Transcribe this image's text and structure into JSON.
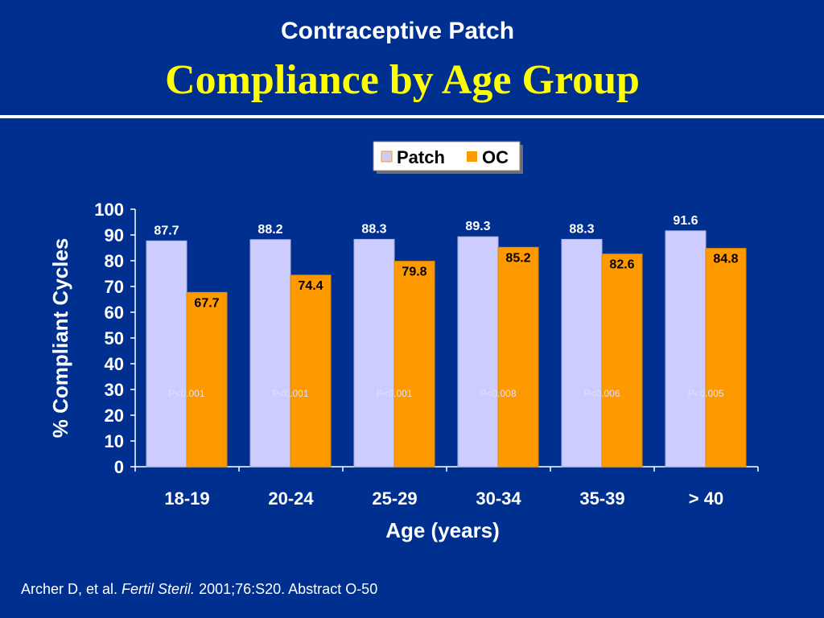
{
  "header": {
    "subtitle": "Contraceptive Patch",
    "title": "Compliance by Age Group"
  },
  "chart_data": {
    "type": "bar",
    "categories": [
      "18-19",
      "20-24",
      "25-29",
      "30-34",
      "35-39",
      "> 40"
    ],
    "series": [
      {
        "name": "Patch",
        "color": "#ccccff",
        "values": [
          87.7,
          88.2,
          88.3,
          89.3,
          88.3,
          91.6
        ]
      },
      {
        "name": "OC",
        "color": "#ff9900",
        "values": [
          67.7,
          74.4,
          79.8,
          85.2,
          82.6,
          84.8
        ]
      }
    ],
    "p_values": [
      "P<0.001",
      "P<0.001",
      "P<0.001",
      "P<0.008",
      "P<0.006",
      "P<0.005"
    ],
    "xlabel": "Age (years)",
    "ylabel": "% Compliant Cycles",
    "ylim": [
      0,
      100
    ],
    "yticks": [
      0,
      10,
      20,
      30,
      40,
      50,
      60,
      70,
      80,
      90,
      100
    ],
    "legend": "top-center",
    "grid": false
  },
  "footer": {
    "citation_prefix": "Archer D, et al. ",
    "citation_journal": "Fertil Steril.",
    "citation_suffix": " 2001;76:S20. Abstract O-50"
  }
}
